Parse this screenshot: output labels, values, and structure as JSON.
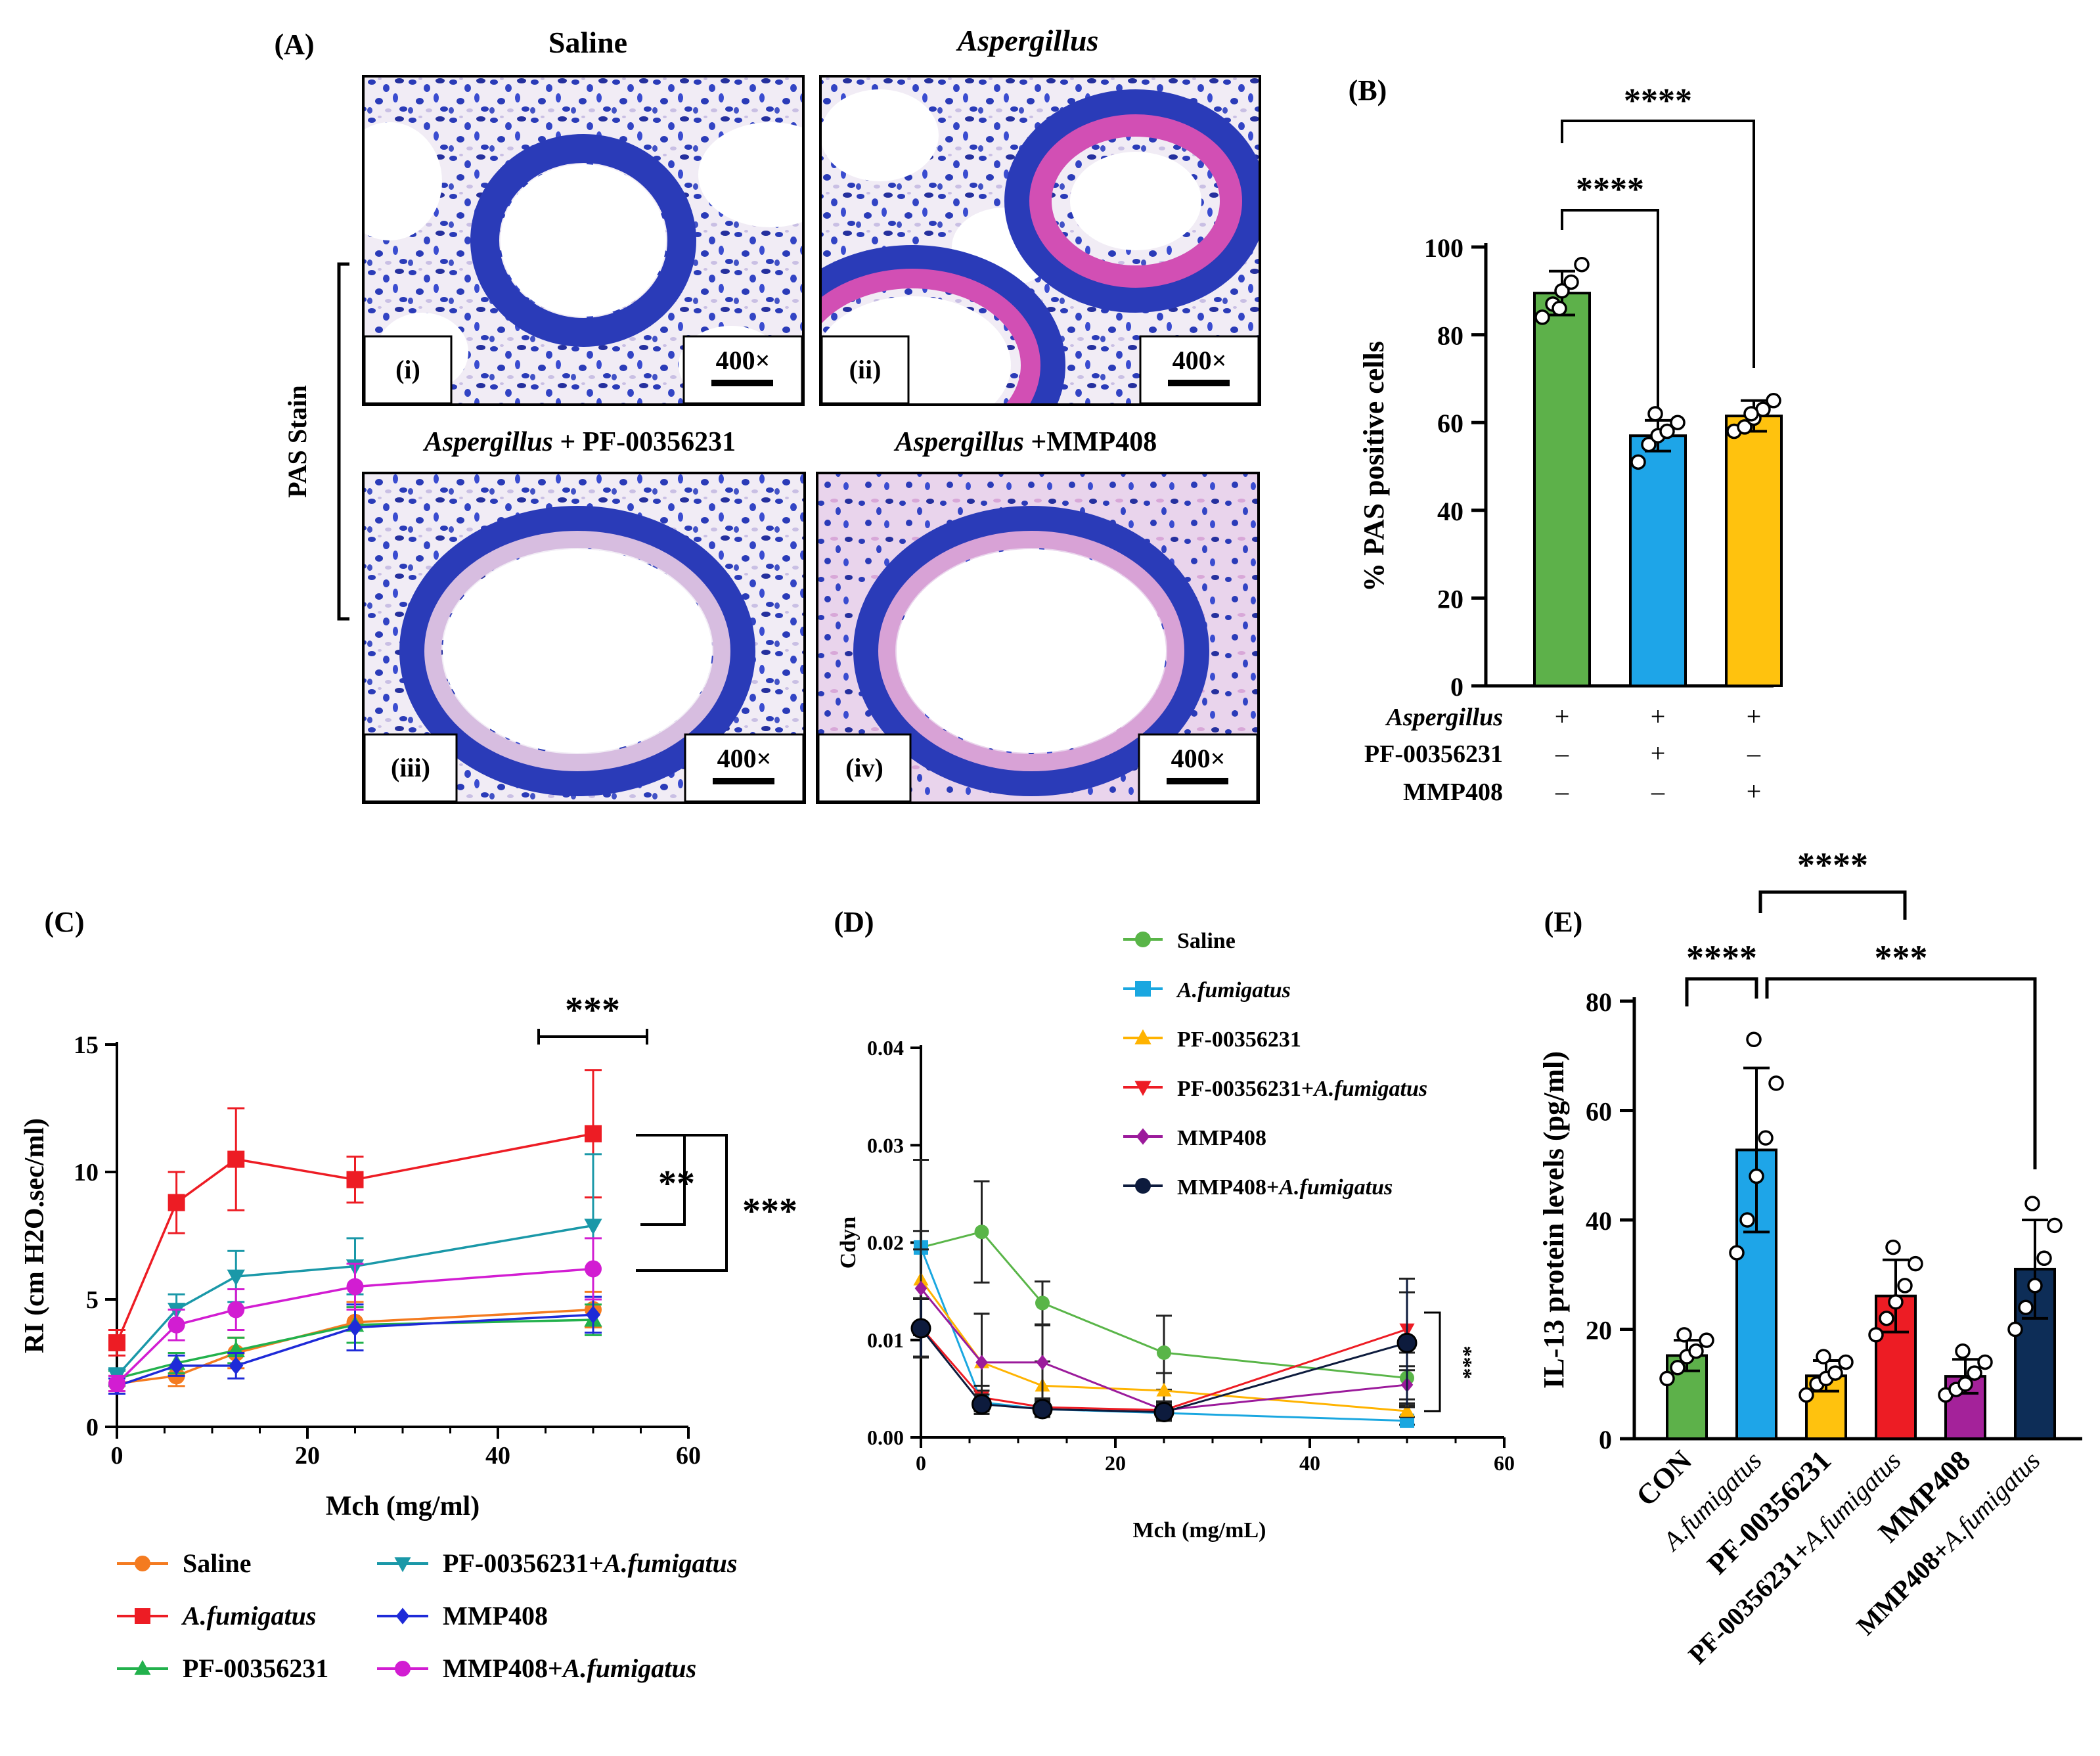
{
  "panel_labels": {
    "a": "(A)",
    "b": "(B)",
    "c": "(C)",
    "d": "(D)",
    "e": "(E)"
  },
  "stars": {
    "s2": "**",
    "s3": "***",
    "s4": "****"
  },
  "panel_a": {
    "col_titles": [
      "Saline",
      "Aspergillus"
    ],
    "row2_titles": {
      "iii_italic": "Aspergillus",
      "iii_rest": " + PF-00356231",
      "iv_italic": "Aspergillus",
      "iv_rest": " +MMP408"
    },
    "stain_label": "PAS Stain",
    "magnification": "400×",
    "tile_labels": [
      "(i)",
      "(ii)",
      "(iii)",
      "(iv)"
    ],
    "palette": {
      "background": "#f3eef6",
      "nuclei": "#2a3bb8",
      "pas": "#d24fb4",
      "lumen": "#ffffff"
    }
  },
  "chart_data": [
    {
      "id": "B",
      "type": "bar",
      "ylabel": "% PAS positive cells",
      "ylim": [
        0,
        100
      ],
      "yticks": [
        0,
        20,
        40,
        60,
        80,
        100
      ],
      "categories": [
        "Aspergillus+",
        "Aspergillus+PF-00356231",
        "Aspergillus+MMP408"
      ],
      "values": [
        89.5,
        57,
        61.5
      ],
      "errors": [
        5,
        3.5,
        3.5
      ],
      "colors": [
        "#5db14a",
        "#1ea5e8",
        "#ffc20e"
      ],
      "points": [
        [
          84,
          87,
          90,
          92,
          96,
          86
        ],
        [
          51,
          55,
          57,
          58,
          60,
          62
        ],
        [
          58,
          59,
          61,
          63,
          65,
          62
        ]
      ],
      "condition_rows": [
        {
          "label": "Aspergillus",
          "italic": true,
          "signs": [
            "+",
            "+",
            "+"
          ]
        },
        {
          "label": "PF-00356231",
          "italic": false,
          "signs": [
            "–",
            "+",
            "–"
          ]
        },
        {
          "label": "MMP408",
          "italic": false,
          "signs": [
            "–",
            "–",
            "+"
          ]
        }
      ],
      "significance": [
        {
          "pair": [
            0,
            2
          ],
          "label": "****"
        },
        {
          "pair": [
            0,
            1
          ],
          "label": "****"
        }
      ]
    },
    {
      "id": "C",
      "type": "line",
      "xlabel": "Mch (mg/ml)",
      "ylabel": "RI (cm H2O.sec/ml)",
      "xlim": [
        0,
        60
      ],
      "ylim": [
        0,
        15
      ],
      "xticks": [
        0,
        20,
        40,
        60
      ],
      "yticks": [
        0,
        5,
        10,
        15
      ],
      "x": [
        0,
        6.25,
        12.5,
        25,
        50
      ],
      "series": [
        {
          "name": "Saline",
          "color": "#f47b20",
          "marker": "circle",
          "values": [
            1.7,
            2.0,
            2.9,
            4.1,
            4.6
          ],
          "errors": [
            0.3,
            0.4,
            0.6,
            0.8,
            0.7
          ]
        },
        {
          "name": "A.fumigatus",
          "italic": true,
          "color": "#ed1c24",
          "marker": "square",
          "values": [
            3.3,
            8.8,
            10.5,
            9.7,
            11.5
          ],
          "errors": [
            0.5,
            1.2,
            2.0,
            0.9,
            2.5
          ]
        },
        {
          "name": "PF-00356231",
          "color": "#22b14c",
          "marker": "triangle",
          "values": [
            1.9,
            2.5,
            3.0,
            4.0,
            4.2
          ],
          "errors": [
            0.3,
            0.4,
            0.5,
            0.7,
            0.6
          ]
        },
        {
          "name": "PF-00356231+A.fumigatus",
          "italic_suffix": "A.fumigatus",
          "color": "#1a98a8",
          "marker": "triangle-down",
          "values": [
            2.0,
            4.6,
            5.9,
            6.3,
            7.9
          ],
          "errors": [
            0.3,
            0.6,
            1.0,
            1.1,
            2.8
          ]
        },
        {
          "name": "MMP408",
          "color": "#1e2ad8",
          "marker": "diamond",
          "values": [
            1.6,
            2.4,
            2.4,
            3.9,
            4.4
          ],
          "errors": [
            0.3,
            0.4,
            0.5,
            0.9,
            0.7
          ]
        },
        {
          "name": "MMP408+A.fumigatus",
          "italic_suffix": "A.fumigatus",
          "color": "#d21dd2",
          "marker": "circle",
          "values": [
            1.7,
            4.0,
            4.6,
            5.5,
            6.2
          ],
          "errors": [
            0.3,
            0.6,
            0.8,
            0.9,
            1.2
          ]
        }
      ],
      "significance": [
        "***",
        "**",
        "***"
      ]
    },
    {
      "id": "D",
      "type": "line",
      "xlabel": "Mch (mg/mL)",
      "ylabel": "Cdyn",
      "xlim": [
        0,
        60
      ],
      "ylim": [
        0,
        0.04
      ],
      "xticks": [
        0,
        20,
        40,
        60
      ],
      "yticks": [
        0.0,
        0.01,
        0.02,
        0.03,
        0.04
      ],
      "x": [
        0,
        6.25,
        12.5,
        25,
        50
      ],
      "series": [
        {
          "name": "Saline",
          "color": "#59b548",
          "marker": "circle",
          "values": [
            0.0195,
            0.0211,
            0.0138,
            0.0087,
            0.0061
          ],
          "errors": [
            0.009,
            0.0052,
            0.0022,
            0.0038,
            0.0026
          ]
        },
        {
          "name": "A.fumigatus",
          "italic": true,
          "color": "#1aa7e0",
          "marker": "square",
          "values": [
            0.0195,
            0.0036,
            0.0029,
            0.0025,
            0.0017
          ],
          "errors": [
            0.009,
            0.0012,
            0.0008,
            0.0008,
            0.0004
          ]
        },
        {
          "name": "PF-00356231",
          "color": "#ffb300",
          "marker": "triangle",
          "values": [
            0.0162,
            0.0077,
            0.0053,
            0.0048,
            0.0027
          ],
          "errors": [
            0.005,
            0.005,
            0.0025,
            0.0018,
            0.0006
          ]
        },
        {
          "name": "PF-00356231+A.fumigatus",
          "italic_suffix": "A.fumigatus",
          "color": "#ed1c24",
          "marker": "triangle-down",
          "values": [
            0.0113,
            0.0041,
            0.0031,
            0.0028,
            0.0111
          ],
          "errors": [
            0.003,
            0.0012,
            0.0009,
            0.0008,
            0.0038
          ]
        },
        {
          "name": "MMP408",
          "color": "#9b1a9b",
          "marker": "diamond",
          "values": [
            0.0153,
            0.0077,
            0.0077,
            0.0028,
            0.0054
          ],
          "errors": [
            0.004,
            0.005,
            0.0038,
            0.0009,
            0.0015
          ]
        },
        {
          "name": "MMP408+A.fumigatus",
          "italic_suffix": "A.fumigatus",
          "color": "#0d1b3d",
          "marker": "circle",
          "values": [
            0.0112,
            0.0034,
            0.0029,
            0.0026,
            0.0097
          ],
          "errors": [
            0.003,
            0.001,
            0.0008,
            0.0008,
            0.0066
          ]
        }
      ],
      "significance": [
        "***"
      ]
    },
    {
      "id": "E",
      "type": "bar",
      "ylabel": "IL-13 protein  levels (pg/ml)",
      "ylim": [
        0,
        80
      ],
      "yticks": [
        0,
        20,
        40,
        60,
        80
      ],
      "categories": [
        "CON",
        "A.fumigatus",
        "PF-00356231",
        "PF-00356231+A.fumigatus",
        "MMP408",
        "MMP408+A.fumigatus"
      ],
      "values": [
        15.2,
        52.8,
        11.5,
        26.1,
        11.4,
        31.0
      ],
      "errors": [
        2.8,
        15,
        2.8,
        6.6,
        3.1,
        9
      ],
      "colors": [
        "#5db14a",
        "#1ea5e8",
        "#ffc20e",
        "#ed1c24",
        "#a4229a",
        "#0d2d57"
      ],
      "points": [
        [
          11,
          13,
          15,
          16,
          18,
          19
        ],
        [
          34,
          40,
          48,
          55,
          65,
          73
        ],
        [
          8,
          10,
          11,
          12,
          14,
          15
        ],
        [
          19,
          22,
          25,
          28,
          32,
          35
        ],
        [
          8,
          9,
          10,
          12,
          14,
          16
        ],
        [
          20,
          24,
          28,
          33,
          39,
          43
        ]
      ],
      "significance": [
        {
          "pair": [
            0,
            1
          ],
          "label": "****"
        },
        {
          "pair": [
            1,
            3
          ],
          "label": "****"
        },
        {
          "pair": [
            1,
            5
          ],
          "label": "***"
        }
      ]
    }
  ]
}
